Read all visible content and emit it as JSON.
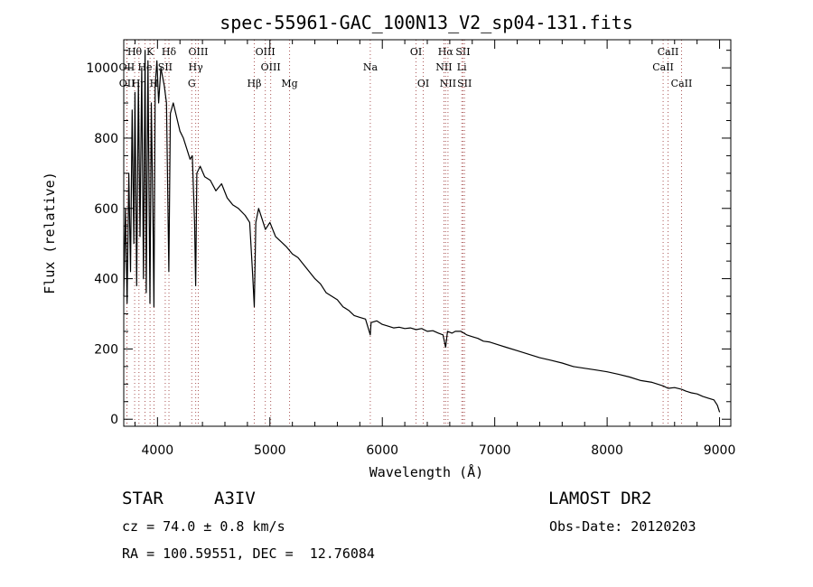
{
  "chart_data": {
    "type": "line",
    "title": "spec-55961-GAC_100N13_V2_sp04-131.fits",
    "xlabel": "Wavelength (Å)",
    "ylabel": "Flux (relative)",
    "xlim": [
      3700,
      9100
    ],
    "ylim": [
      -20,
      1080
    ],
    "xticks": [
      4000,
      5000,
      6000,
      7000,
      8000,
      9000
    ],
    "yticks": [
      0,
      200,
      400,
      600,
      800,
      1000
    ],
    "grid": false,
    "series": [
      {
        "x": [
          3700,
          3715,
          3730,
          3745,
          3760,
          3775,
          3790,
          3800,
          3815,
          3830,
          3845,
          3860,
          3875,
          3890,
          3900,
          3915,
          3933,
          3945,
          3960,
          3968,
          3980,
          3995,
          4010,
          4030,
          4060,
          4080,
          4101,
          4115,
          4140,
          4170,
          4200,
          4230,
          4260,
          4290,
          4310,
          4330,
          4340,
          4350,
          4380,
          4420,
          4470,
          4520,
          4570,
          4620,
          4670,
          4720,
          4780,
          4820,
          4845,
          4861,
          4875,
          4900,
          4930,
          4960,
          5000,
          5050,
          5100,
          5150,
          5200,
          5250,
          5300,
          5350,
          5400,
          5450,
          5500,
          5550,
          5600,
          5650,
          5700,
          5750,
          5800,
          5850,
          5893,
          5900,
          5950,
          6000,
          6050,
          6100,
          6150,
          6200,
          6250,
          6300,
          6350,
          6400,
          6450,
          6500,
          6540,
          6563,
          6580,
          6620,
          6650,
          6700,
          6750,
          6800,
          6850,
          6900,
          6950,
          7000,
          7100,
          7200,
          7300,
          7400,
          7500,
          7600,
          7700,
          7800,
          7900,
          8000,
          8100,
          8200,
          8300,
          8400,
          8498,
          8542,
          8600,
          8662,
          8700,
          8750,
          8800,
          8850,
          8900,
          8950,
          8980,
          9000
        ],
        "values": [
          350,
          600,
          330,
          700,
          420,
          880,
          500,
          930,
          380,
          960,
          520,
          1000,
          400,
          1050,
          360,
          1020,
          330,
          900,
          560,
          320,
          950,
          1020,
          900,
          1000,
          950,
          900,
          420,
          870,
          900,
          860,
          820,
          800,
          770,
          740,
          750,
          560,
          380,
          700,
          720,
          690,
          680,
          650,
          670,
          630,
          610,
          600,
          580,
          560,
          420,
          320,
          560,
          600,
          570,
          540,
          560,
          520,
          505,
          490,
          470,
          460,
          440,
          420,
          400,
          385,
          360,
          350,
          340,
          320,
          310,
          295,
          290,
          285,
          240,
          275,
          280,
          270,
          265,
          260,
          262,
          258,
          260,
          255,
          258,
          250,
          252,
          245,
          240,
          205,
          250,
          245,
          250,
          250,
          240,
          235,
          230,
          222,
          220,
          215,
          205,
          195,
          185,
          175,
          168,
          160,
          150,
          145,
          140,
          135,
          128,
          120,
          110,
          105,
          95,
          88,
          90,
          85,
          80,
          75,
          72,
          65,
          60,
          55,
          40,
          20
        ]
      }
    ],
    "lines": [
      {
        "label": "Hθ",
        "x": 3797,
        "row": 1,
        "color": "#aa5555"
      },
      {
        "label": "K",
        "x": 3934,
        "row": 1,
        "color": "#aa5555"
      },
      {
        "label": "Hδ",
        "x": 4102,
        "row": 1,
        "color": "#aa5555"
      },
      {
        "label": "OIII",
        "x": 4363,
        "row": 1,
        "color": "#aa5555"
      },
      {
        "label": "OIII",
        "x": 4959,
        "row": 1,
        "color": "#aa5555"
      },
      {
        "label": "OI",
        "x": 6300,
        "row": 1,
        "color": "#aa5555"
      },
      {
        "label": "Hα",
        "x": 6563,
        "row": 1,
        "color": "#aa5555"
      },
      {
        "label": "SII",
        "x": 6717,
        "row": 1,
        "color": "#aa5555"
      },
      {
        "label": "CaII",
        "x": 8542,
        "row": 1,
        "color": "#aa5555"
      },
      {
        "label": "OII",
        "x": 3727,
        "row": 2,
        "color": "#aa5555"
      },
      {
        "label": "He",
        "x": 3889,
        "row": 2,
        "color": "#aa5555"
      },
      {
        "label": "SII",
        "x": 4069,
        "row": 2,
        "color": "#aa5555"
      },
      {
        "label": "Hγ",
        "x": 4340,
        "row": 2,
        "color": "#aa5555"
      },
      {
        "label": "OIII",
        "x": 5007,
        "row": 2,
        "color": "#aa5555"
      },
      {
        "label": "Na",
        "x": 5893,
        "row": 2,
        "color": "#aa5555"
      },
      {
        "label": "NII",
        "x": 6548,
        "row": 2,
        "color": "#aa5555"
      },
      {
        "label": "Li",
        "x": 6707,
        "row": 2,
        "color": "#aa5555"
      },
      {
        "label": "CaII",
        "x": 8498,
        "row": 2,
        "color": "#aa5555"
      },
      {
        "label": "OII",
        "x": 3729,
        "row": 3,
        "color": "#aa5555"
      },
      {
        "label": "Hη",
        "x": 3835,
        "row": 3,
        "color": "#aa5555"
      },
      {
        "label": "H",
        "x": 3969,
        "row": 3,
        "color": "#aa5555"
      },
      {
        "label": "G",
        "x": 4305,
        "row": 3,
        "color": "#aa5555"
      },
      {
        "label": "Hβ",
        "x": 4861,
        "row": 3,
        "color": "#aa5555"
      },
      {
        "label": "Mg",
        "x": 5175,
        "row": 3,
        "color": "#aa5555"
      },
      {
        "label": "OI",
        "x": 6364,
        "row": 3,
        "color": "#aa5555"
      },
      {
        "label": "NII",
        "x": 6584,
        "row": 3,
        "color": "#aa5555"
      },
      {
        "label": "SII",
        "x": 6731,
        "row": 3,
        "color": "#aa5555"
      },
      {
        "label": "CaII",
        "x": 8662,
        "row": 3,
        "color": "#aa5555"
      }
    ]
  },
  "info": {
    "class_label": "STAR",
    "subclass": "A3IV",
    "survey": "LAMOST DR2",
    "cz": "cz = 74.0 ± 0.8 km/s",
    "obs_date": "Obs-Date: 20120203",
    "coords": "RA = 100.59551, DEC =  12.76084"
  }
}
